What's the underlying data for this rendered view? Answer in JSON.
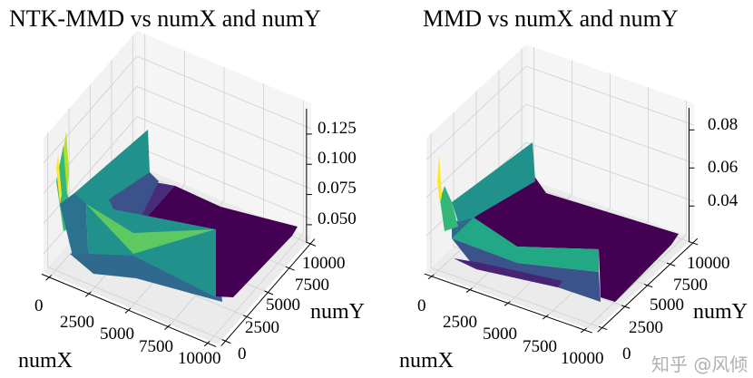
{
  "chart_data": [
    {
      "type": "surface3d",
      "title": "NTK-MMD vs numX and numY",
      "xlabel": "numX",
      "ylabel": "numY",
      "xticks": [
        "0",
        "2500",
        "5000",
        "7500",
        "10000"
      ],
      "yticks": [
        "0",
        "2500",
        "5000",
        "7500",
        "10000"
      ],
      "zticks": [
        "0.050",
        "0.075",
        "0.100",
        "0.125"
      ],
      "xlim": [
        0,
        10000
      ],
      "ylim": [
        0,
        10000
      ],
      "zlim": [
        0.035,
        0.146
      ],
      "colormap": "viridis",
      "grid": true
    },
    {
      "type": "surface3d",
      "title": "MMD vs numX and numY",
      "xlabel": "numX",
      "ylabel": "numY",
      "xticks": [
        "0",
        "2500",
        "5000",
        "7500",
        "10000"
      ],
      "yticks": [
        "0",
        "2500",
        "5000",
        "7500",
        "10000"
      ],
      "zticks": [
        "0.04",
        "0.06",
        "0.08"
      ],
      "xlim": [
        0,
        10000
      ],
      "ylim": [
        0,
        10000
      ],
      "zlim": [
        0.021,
        0.0915
      ],
      "colormap": "viridis",
      "grid": true
    }
  ],
  "watermark": "知乎 @风倾"
}
